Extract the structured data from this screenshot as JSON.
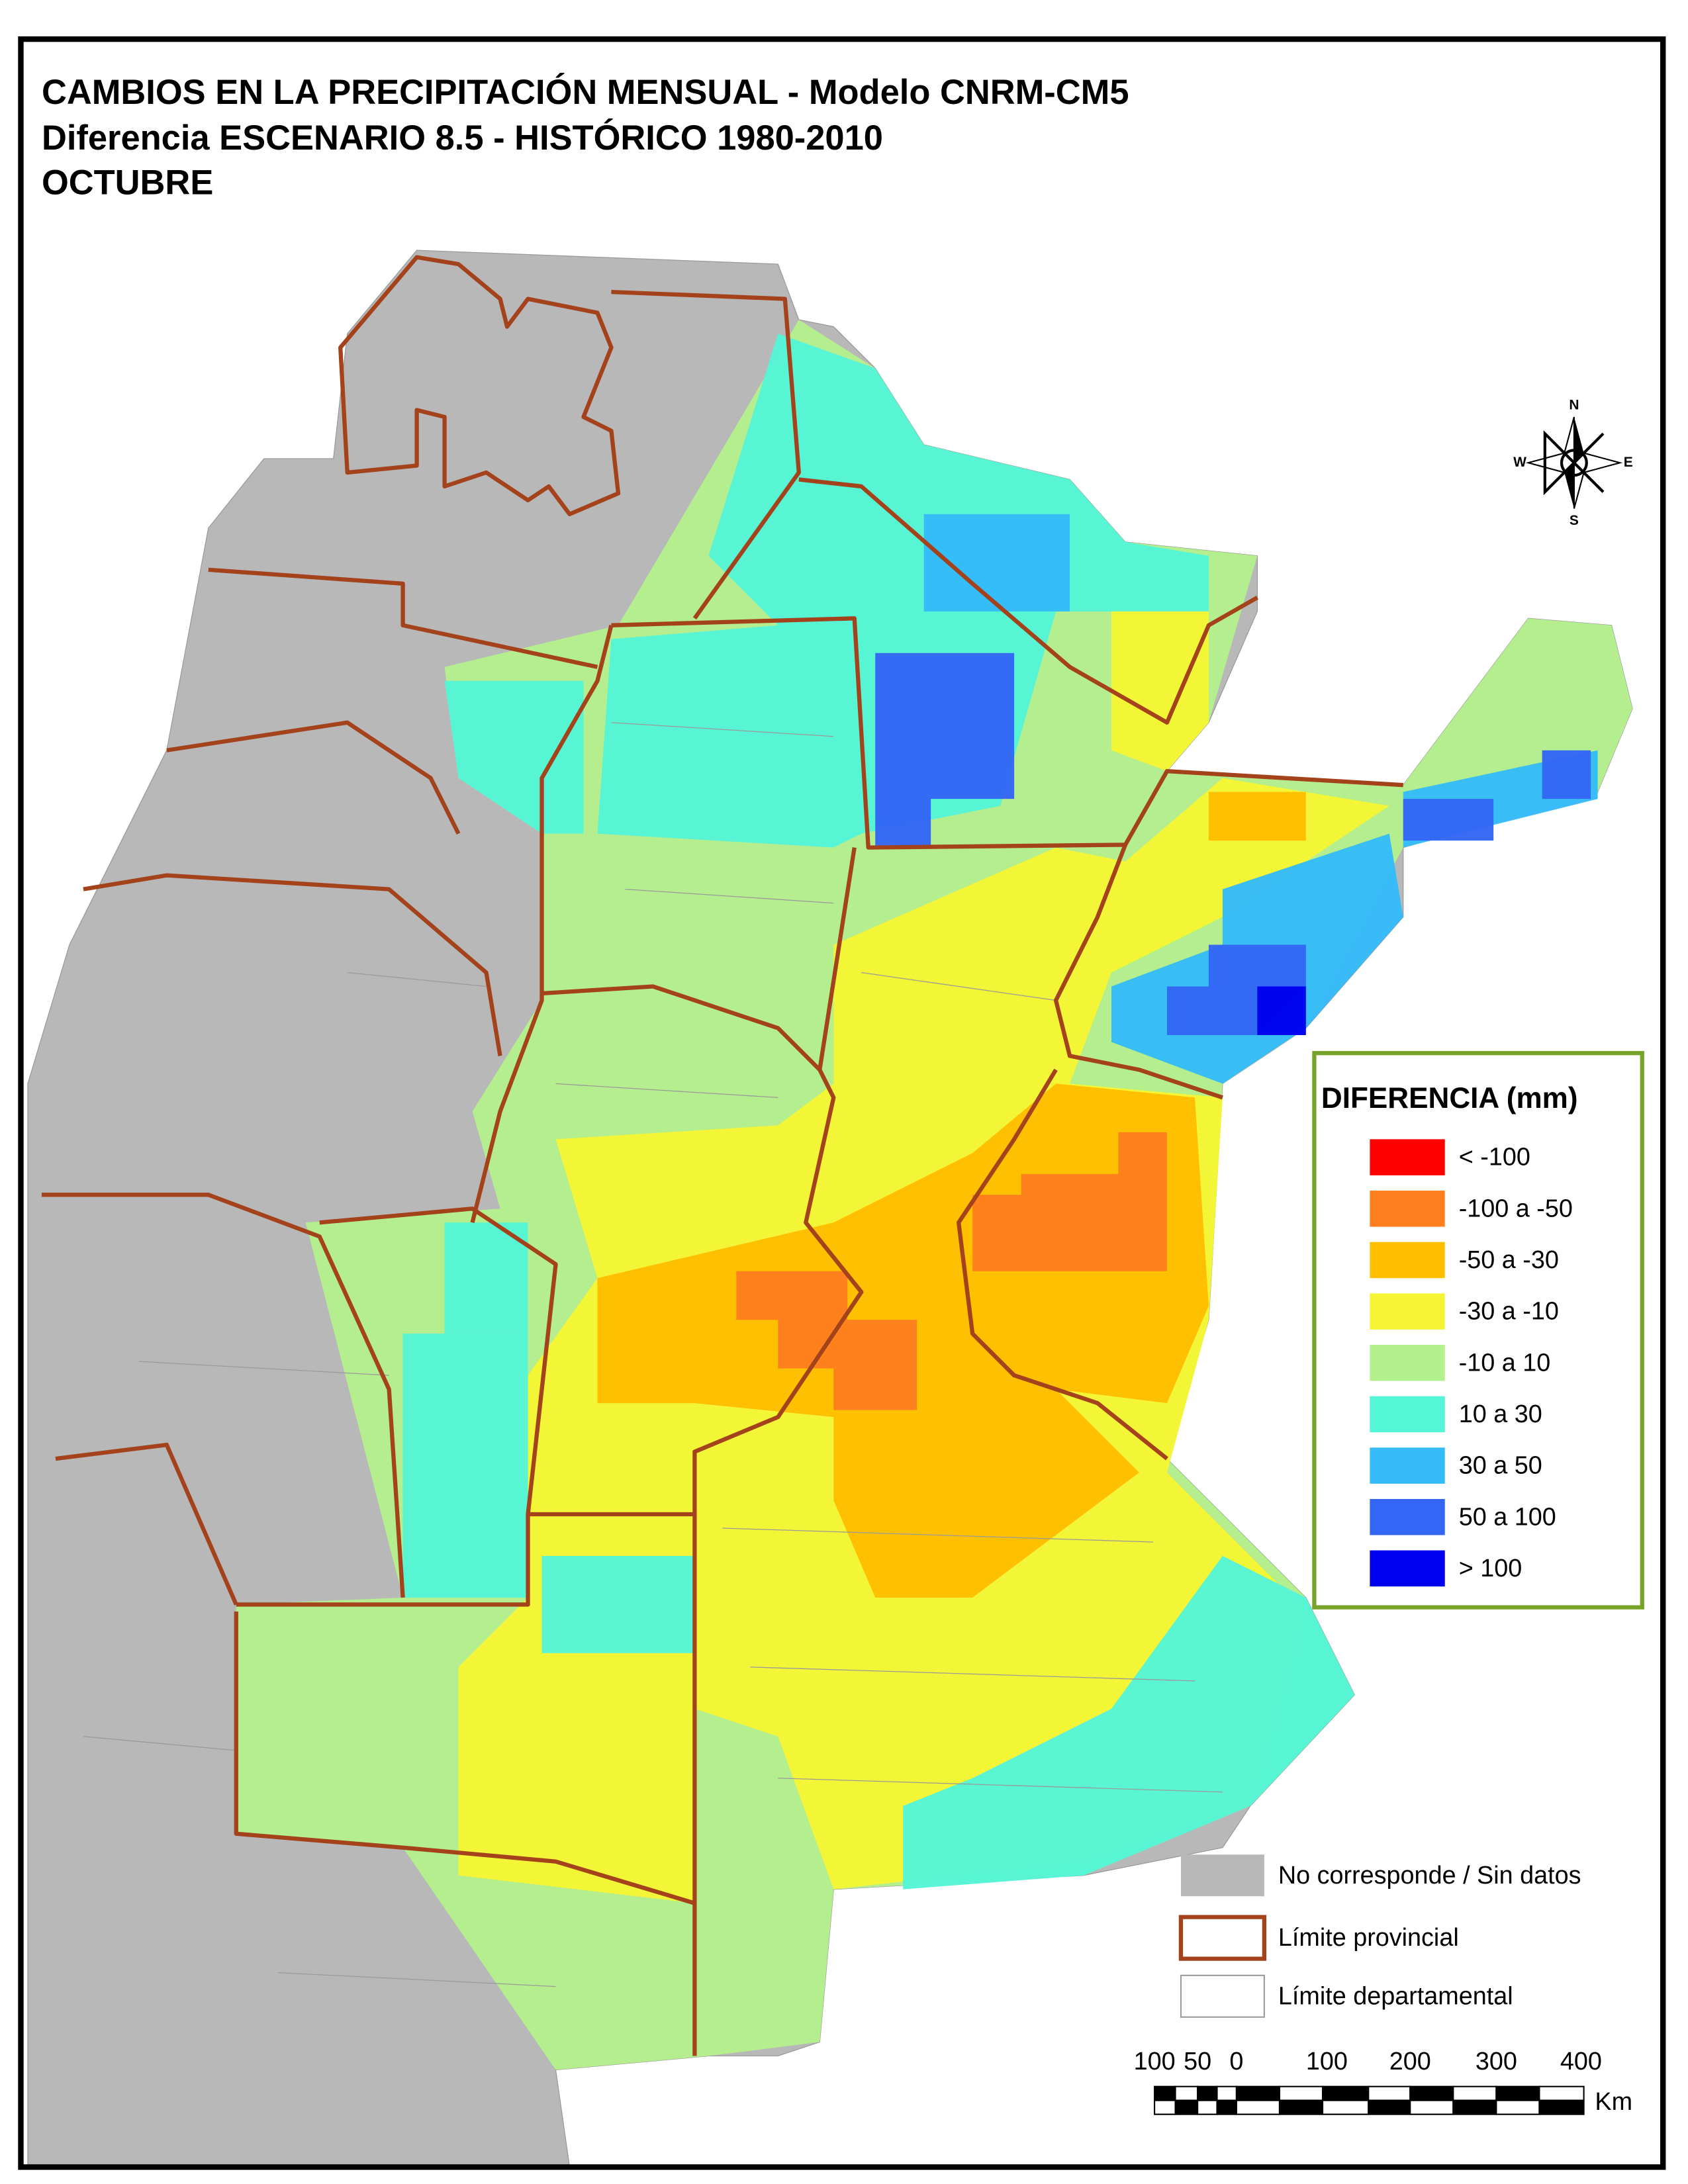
{
  "header": {
    "title_lines": [
      "CAMBIOS EN LA PRECIPITACIÓN MENSUAL - Modelo CNRM-CM5",
      "Diferencia ESCENARIO 8.5 - HISTÓRICO 1980-2010",
      "OCTUBRE"
    ]
  },
  "compass": {
    "north": "N",
    "south": "S",
    "east": "E",
    "west": "W"
  },
  "legend": {
    "title": "DIFERENCIA (mm)",
    "items": [
      {
        "label": "< -100",
        "color": "#ff0000"
      },
      {
        "label": "-100 a -50",
        "color": "#ff7f1e"
      },
      {
        "label": "-50 a -30",
        "color": "#ffbe00"
      },
      {
        "label": "-30 a -10",
        "color": "#f5f535"
      },
      {
        "label": "-10 a 10",
        "color": "#b4f08c"
      },
      {
        "label": "10 a 30",
        "color": "#55f5d7"
      },
      {
        "label": "30 a 50",
        "color": "#34bbf8"
      },
      {
        "label": "50 a 100",
        "color": "#3366f5"
      },
      {
        "label": "> 100",
        "color": "#0000f0"
      }
    ]
  },
  "reference": {
    "items": [
      {
        "label": "No corresponde / Sin datos",
        "color": "#b8b8b8"
      },
      {
        "label": "Límite provincial",
        "color": "#a3421b"
      },
      {
        "label": "Límite departamental",
        "color": "#9a9a9a"
      }
    ]
  },
  "scale_bar": {
    "labels": [
      "100",
      "50",
      "0",
      "100",
      "200",
      "300",
      "400"
    ],
    "unit": "Km"
  }
}
